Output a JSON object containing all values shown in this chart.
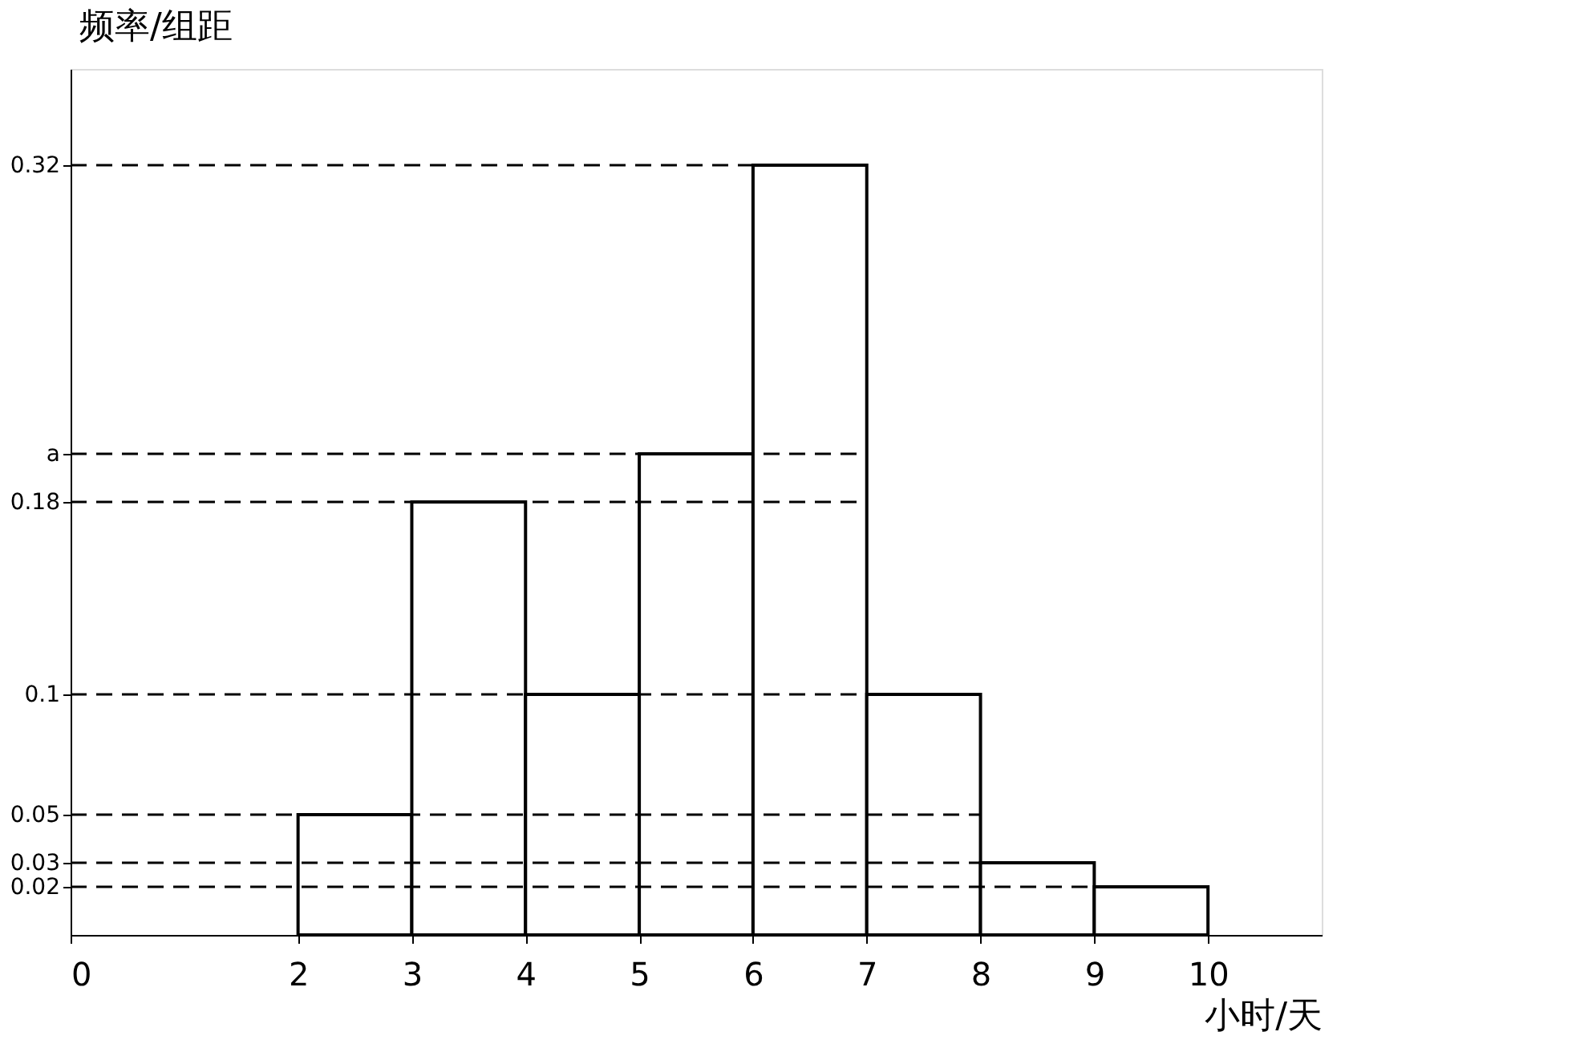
{
  "chart_data": {
    "type": "histogram",
    "xlabel": "小时/天",
    "ylabel": "频率/组距",
    "bins": [
      2,
      3,
      4,
      5,
      6,
      7,
      8,
      9,
      10
    ],
    "values": [
      0.05,
      0.18,
      0.1,
      0.2,
      0.32,
      0.1,
      0.03,
      0.02
    ],
    "color": "#ffffff",
    "xlim": [
      0,
      11
    ],
    "xticks": [
      0,
      2,
      3,
      4,
      5,
      6,
      7,
      8,
      9,
      10
    ],
    "ylim": [
      0,
      0.36
    ],
    "yticks": [
      0.02,
      0.03,
      0.05,
      0.1,
      0.18,
      {
        "value": 0.2,
        "label": "a"
      },
      0.32
    ],
    "ref_lines": [
      {
        "axis": "y",
        "value": 0.32,
        "line_style": "dashed"
      },
      {
        "axis": "y",
        "value": 0.2,
        "line_style": "dashed"
      },
      {
        "axis": "y",
        "value": 0.18,
        "line_style": "dashed"
      },
      {
        "axis": "y",
        "value": 0.1,
        "line_style": "dashed"
      },
      {
        "axis": "y",
        "value": 0.05,
        "line_style": "dashed"
      },
      {
        "axis": "y",
        "value": 0.03,
        "line_style": "dashed"
      },
      {
        "axis": "y",
        "value": 0.02,
        "line_style": "dashed"
      }
    ],
    "grid": false
  }
}
